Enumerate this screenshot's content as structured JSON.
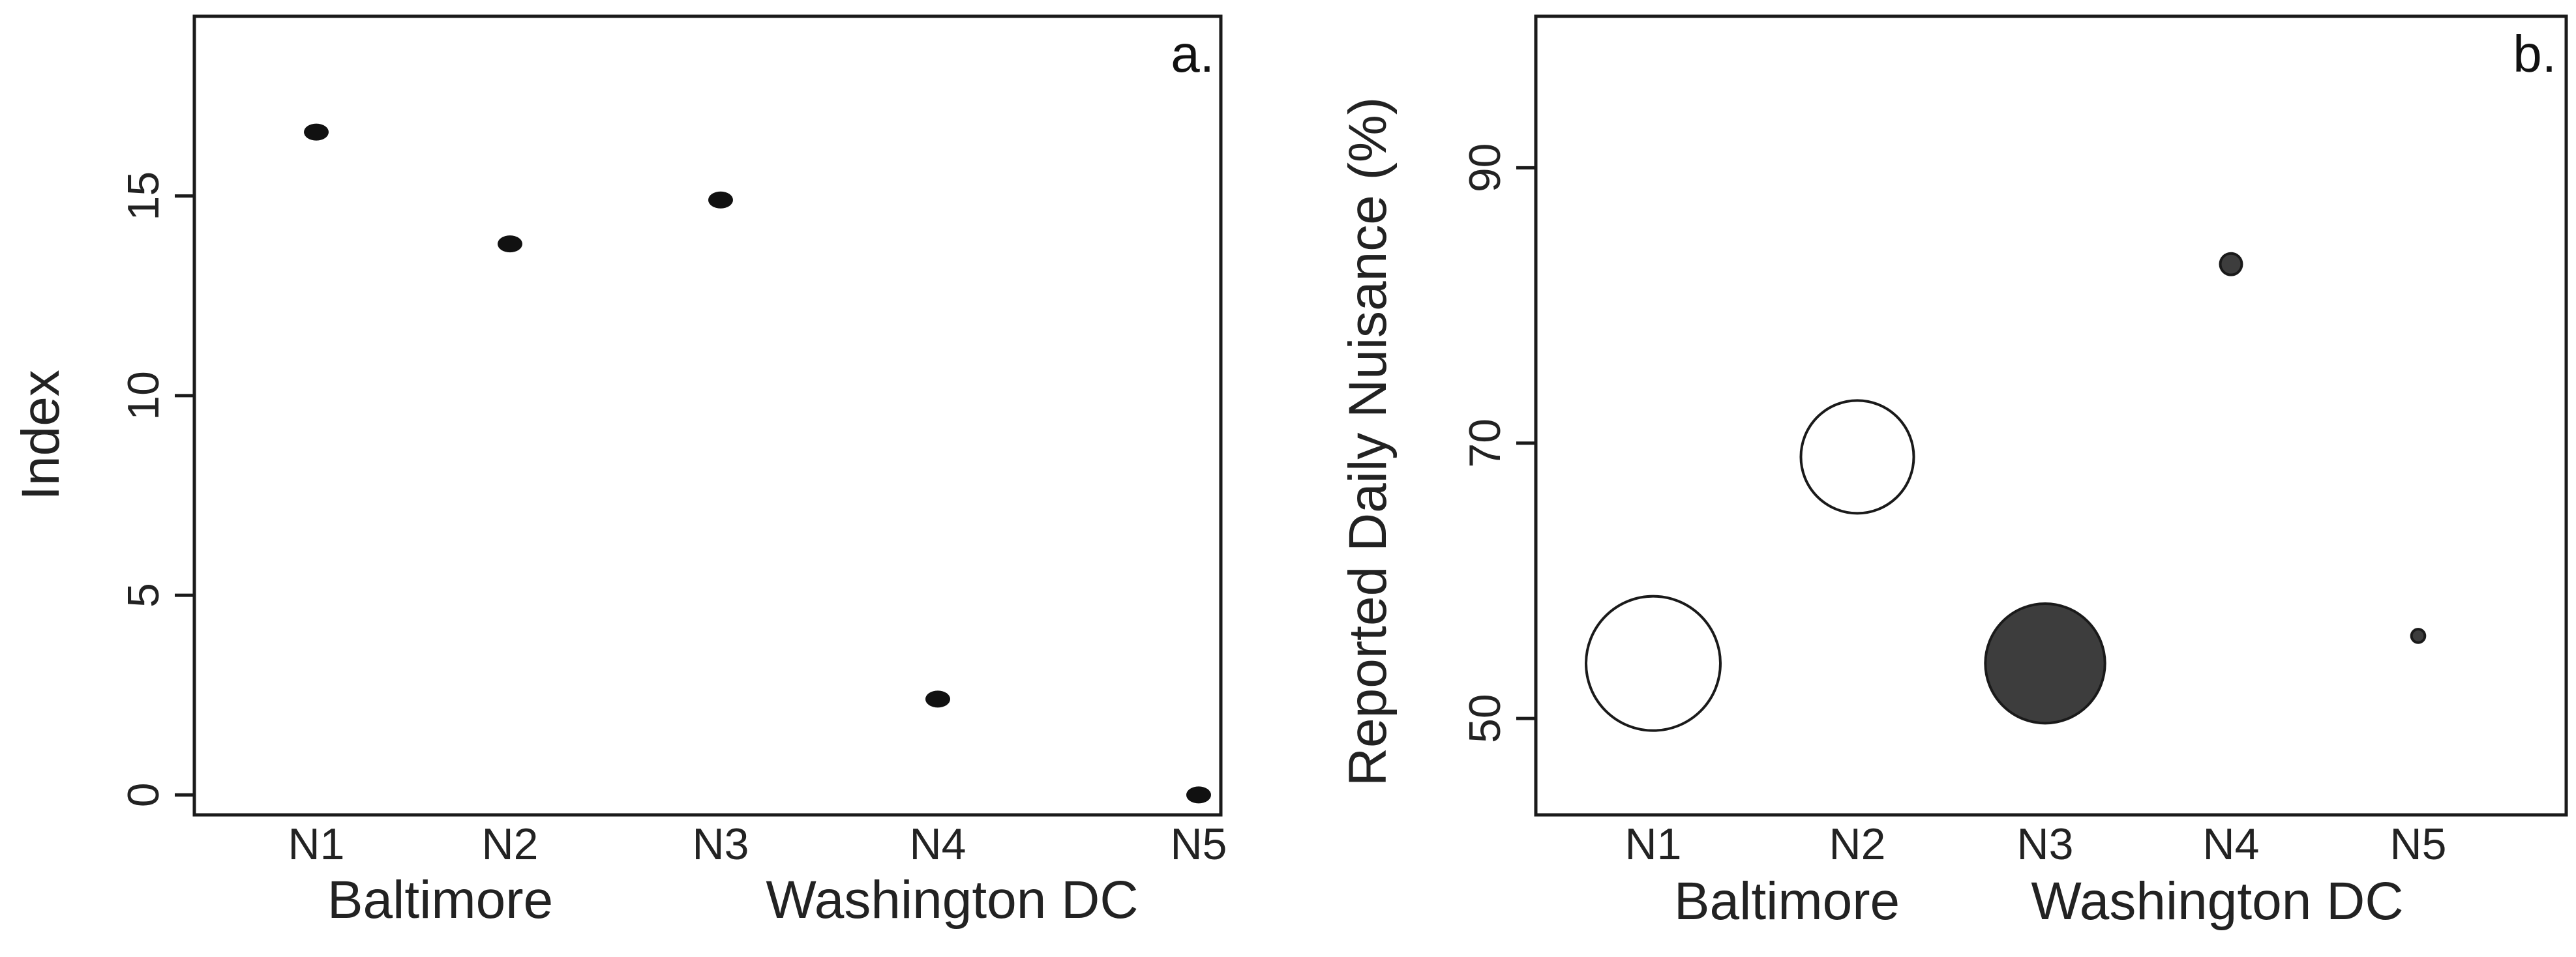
{
  "chart_data": [
    {
      "type": "scatter",
      "panel_label": "a.",
      "ylabel": "Index",
      "ylim": [
        -0.5,
        19.5
      ],
      "yticks": [
        0,
        5,
        10,
        15
      ],
      "categories": [
        "N1",
        "N2",
        "N3",
        "N4",
        "N5"
      ],
      "group_labels": [
        "Baltimore",
        "Washington DC"
      ],
      "grid": false,
      "marker_color": "#111111",
      "points": [
        {
          "category": "N1",
          "y": 16.6
        },
        {
          "category": "N2",
          "y": 13.8
        },
        {
          "category": "N3",
          "y": 14.9
        },
        {
          "category": "N4",
          "y": 2.4
        },
        {
          "category": "N5",
          "y": 0.0
        }
      ]
    },
    {
      "type": "scatter",
      "panel_label": "b.",
      "ylabel": "Reported Daily Nuisance (%)",
      "ylim": [
        43,
        101
      ],
      "yticks": [
        50,
        70,
        90
      ],
      "categories": [
        "N1",
        "N2",
        "N3",
        "N4",
        "N5"
      ],
      "group_labels": [
        "Baltimore",
        "Washington DC"
      ],
      "grid": false,
      "points": [
        {
          "category": "N1",
          "y": 54,
          "size": 1.0,
          "fill": "#ffffff"
        },
        {
          "category": "N2",
          "y": 69,
          "size": 0.84,
          "fill": "#ffffff"
        },
        {
          "category": "N3",
          "y": 54,
          "size": 0.89,
          "fill": "#3d3d3d"
        },
        {
          "category": "N4",
          "y": 83,
          "size": 0.16,
          "fill": "#3d3d3d"
        },
        {
          "category": "N5",
          "y": 56,
          "size": 0.1,
          "fill": "#3d3d3d"
        }
      ]
    }
  ]
}
